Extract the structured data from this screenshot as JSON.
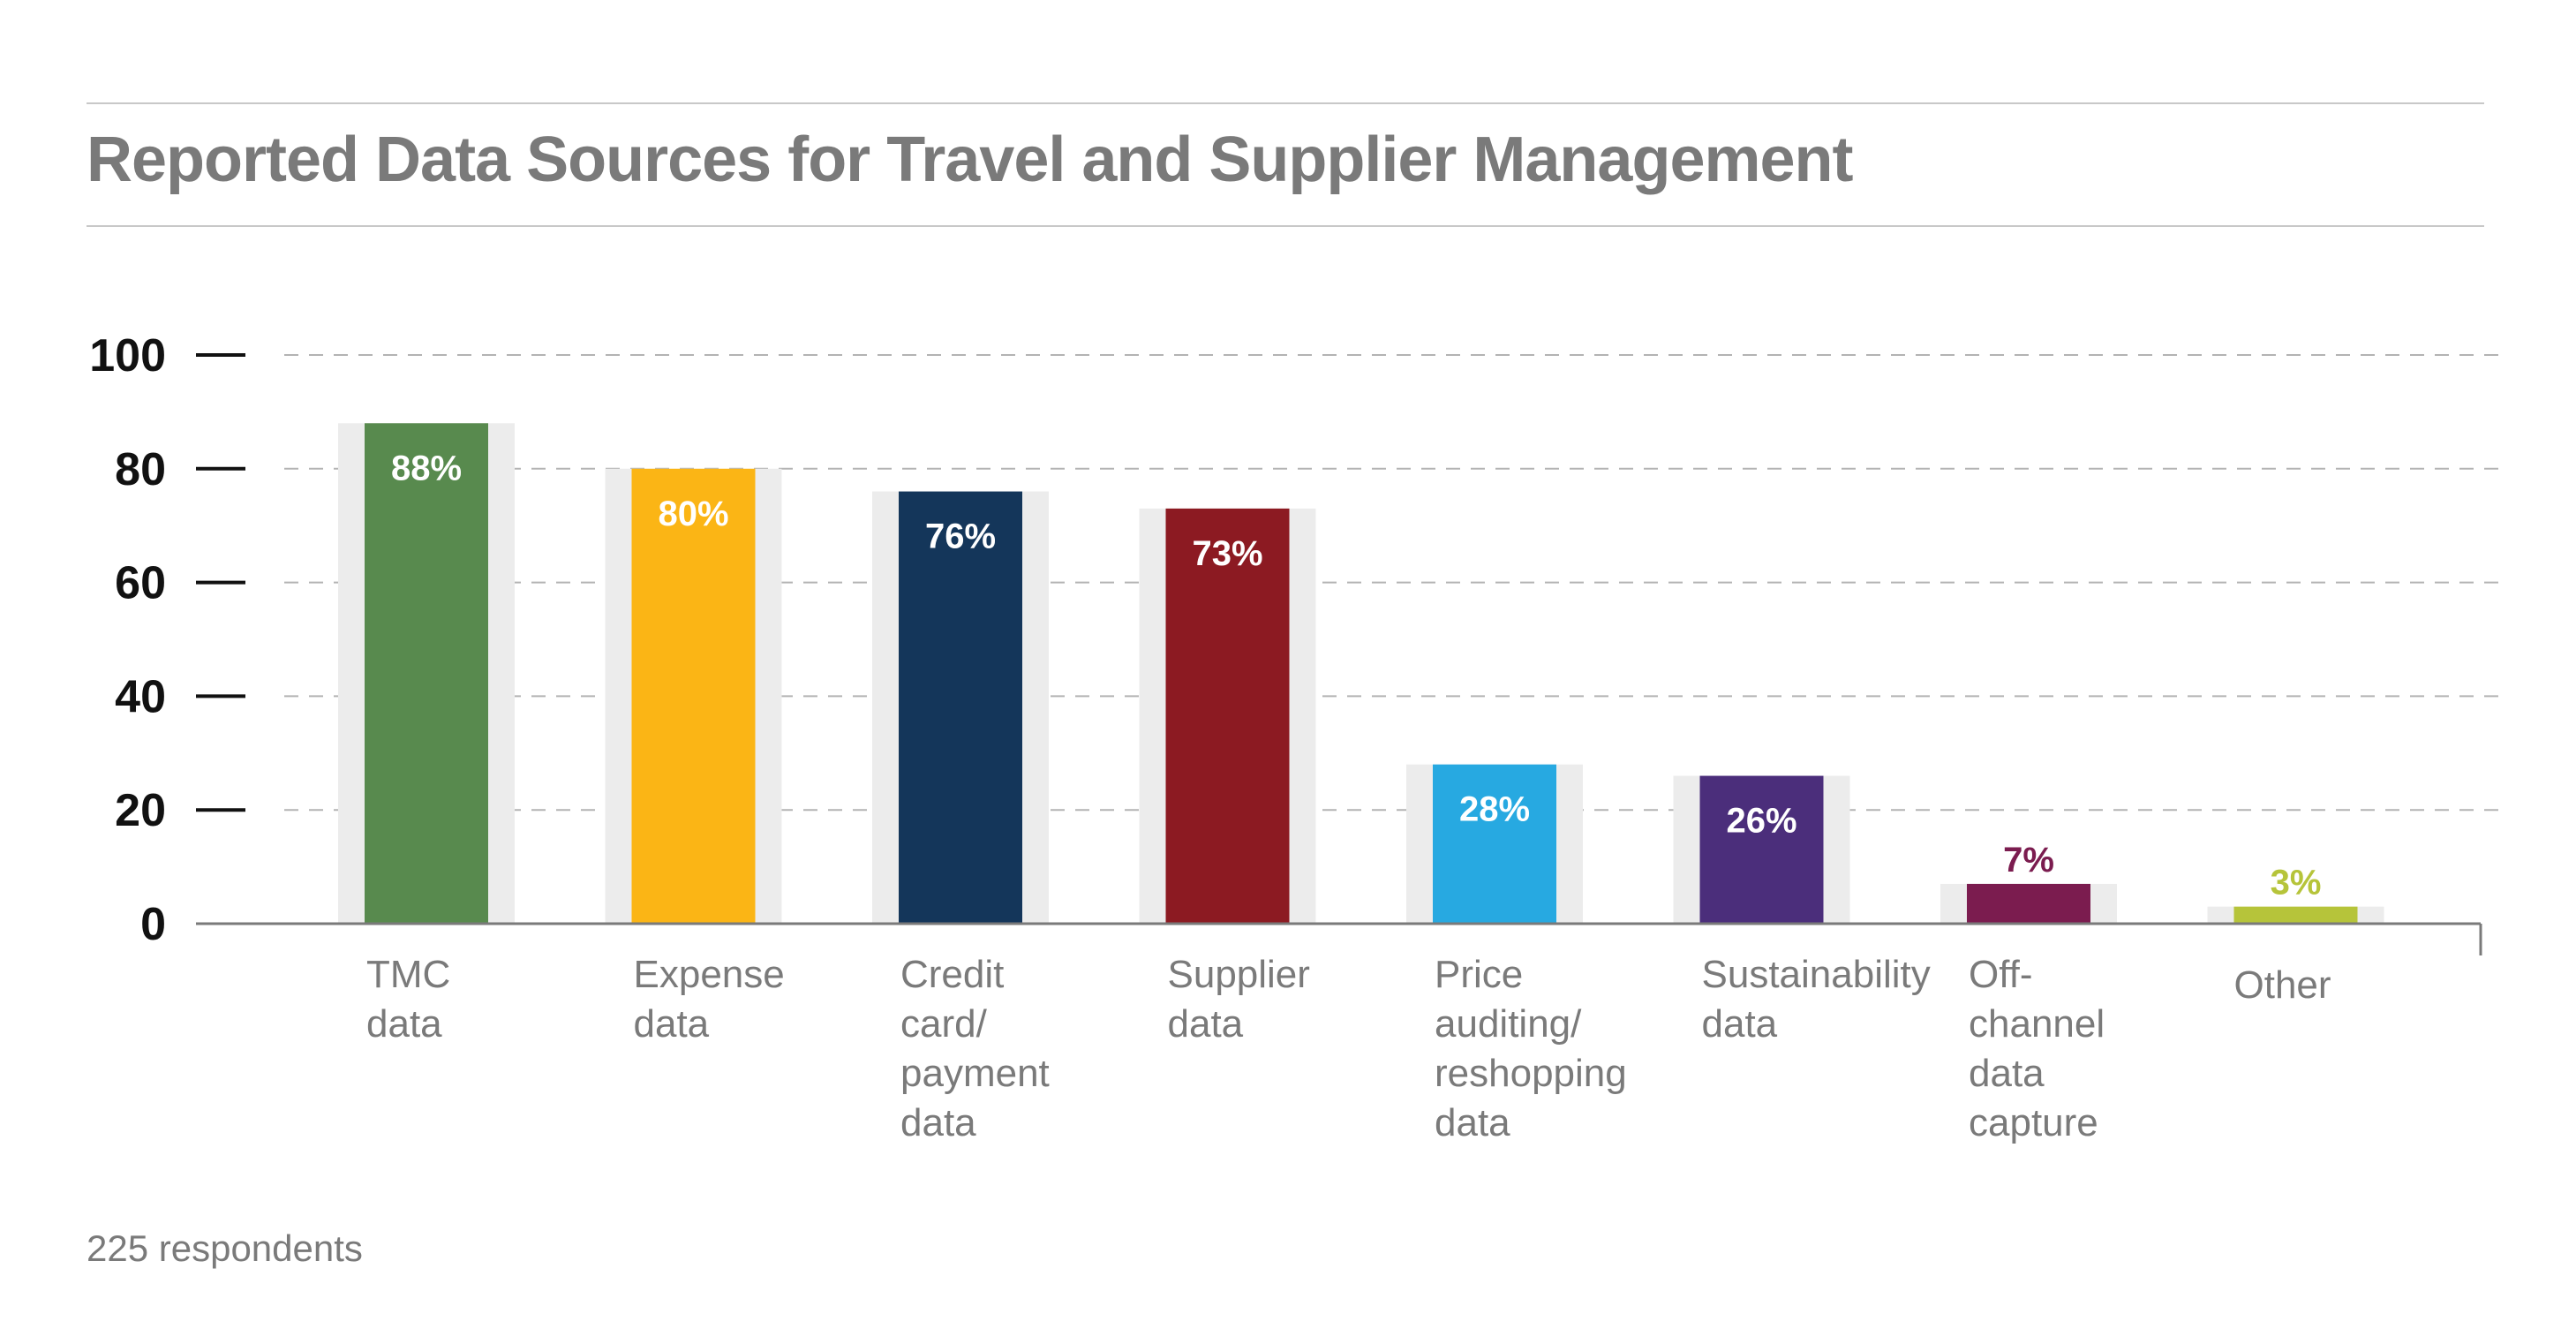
{
  "title": "Reported Data Sources for Travel and Supplier Management",
  "footnote": "225 respondents",
  "chart_data": {
    "type": "bar",
    "title": "Reported Data Sources for Travel and Supplier Management",
    "xlabel": "",
    "ylabel": "",
    "ylim": [
      0,
      100
    ],
    "yticks": [
      0,
      20,
      40,
      60,
      80,
      100
    ],
    "grid": true,
    "categories": [
      [
        "TMC",
        "data"
      ],
      [
        "Expense",
        "data"
      ],
      [
        "Credit",
        "card/",
        "payment",
        "data"
      ],
      [
        "Supplier",
        "data"
      ],
      [
        "Price",
        "auditing/",
        "reshopping",
        "data"
      ],
      [
        "Sustainability",
        "data"
      ],
      [
        "Off-",
        "channel",
        "data",
        "capture"
      ],
      [
        "Other"
      ]
    ],
    "values": [
      88,
      80,
      76,
      73,
      28,
      26,
      7,
      3
    ],
    "value_labels": [
      "88%",
      "80%",
      "76%",
      "73%",
      "28%",
      "26%",
      "7%",
      "3%"
    ],
    "colors": [
      "#588a4e",
      "#fbb515",
      "#14365a",
      "#8c1a22",
      "#27a9e1",
      "#4b2e7b",
      "#7b1c4f",
      "#b6c43a"
    ],
    "label_colors": [
      "#ffffff",
      "#ffffff",
      "#ffffff",
      "#ffffff",
      "#ffffff",
      "#ffffff",
      "#7b1c4f",
      "#b6c43a"
    ],
    "label_inside": [
      true,
      true,
      true,
      true,
      true,
      true,
      false,
      false
    ],
    "shadow_color": "#ececec",
    "grid_color": "#b3b3b3",
    "axis_color": "#7a7a7a",
    "tick_label_color": "#111111",
    "category_label_color": "#7a7a7a"
  }
}
